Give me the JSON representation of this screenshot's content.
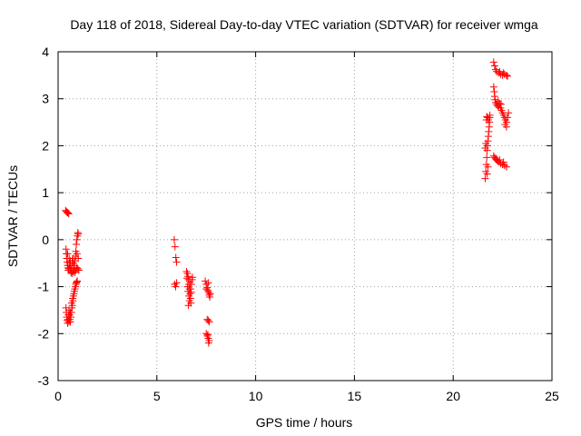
{
  "chart_data": {
    "type": "scatter",
    "title": "Day 118 of 2018, Sidereal Day-to-day VTEC variation (SDTVAR) for receiver wmga",
    "xlabel": "GPS time / hours",
    "ylabel": "SDTVAR / TECUs",
    "xlim": [
      0,
      25
    ],
    "ylim": [
      -3,
      4
    ],
    "x_ticks": [
      0,
      5,
      10,
      15,
      20,
      25
    ],
    "y_ticks": [
      -3,
      -2,
      -1,
      0,
      1,
      2,
      3,
      4
    ],
    "grid": true,
    "marker": "+",
    "color": "#ff0000",
    "series": [
      {
        "name": "wmga",
        "points": [
          [
            0.38,
            0.62
          ],
          [
            0.42,
            0.6
          ],
          [
            0.46,
            0.58
          ],
          [
            0.5,
            0.57
          ],
          [
            0.54,
            0.55
          ],
          [
            0.4,
            -0.2
          ],
          [
            0.42,
            -0.3
          ],
          [
            0.44,
            -0.4
          ],
          [
            0.46,
            -0.48
          ],
          [
            0.48,
            -0.55
          ],
          [
            0.5,
            -0.6
          ],
          [
            0.52,
            -0.65
          ],
          [
            0.55,
            -0.62
          ],
          [
            0.58,
            -0.55
          ],
          [
            0.6,
            -0.5
          ],
          [
            0.62,
            -0.6
          ],
          [
            0.65,
            -0.7
          ],
          [
            0.68,
            -0.62
          ],
          [
            0.7,
            -0.55
          ],
          [
            0.72,
            -0.45
          ],
          [
            0.75,
            -0.4
          ],
          [
            0.78,
            -0.5
          ],
          [
            0.8,
            -0.6
          ],
          [
            0.82,
            -0.55
          ],
          [
            0.85,
            -0.45
          ],
          [
            0.88,
            -0.35
          ],
          [
            0.9,
            -0.25
          ],
          [
            0.92,
            -0.1
          ],
          [
            0.95,
            0.0
          ],
          [
            0.98,
            0.08
          ],
          [
            1.0,
            0.15
          ],
          [
            1.02,
            0.12
          ],
          [
            0.9,
            -0.65
          ],
          [
            0.95,
            -0.6
          ],
          [
            1.0,
            -0.62
          ],
          [
            1.05,
            -0.65
          ],
          [
            0.48,
            -0.3
          ],
          [
            0.56,
            -0.4
          ],
          [
            0.62,
            -0.45
          ],
          [
            0.7,
            -0.72
          ],
          [
            0.76,
            -0.68
          ],
          [
            0.84,
            -0.7
          ],
          [
            0.96,
            -0.3
          ],
          [
            1.02,
            -0.4
          ],
          [
            0.4,
            -1.45
          ],
          [
            0.42,
            -1.55
          ],
          [
            0.44,
            -1.65
          ],
          [
            0.46,
            -1.72
          ],
          [
            0.48,
            -1.78
          ],
          [
            0.5,
            -1.7
          ],
          [
            0.52,
            -1.6
          ],
          [
            0.55,
            -1.5
          ],
          [
            0.58,
            -1.6
          ],
          [
            0.6,
            -1.7
          ],
          [
            0.62,
            -1.75
          ],
          [
            0.65,
            -1.65
          ],
          [
            0.68,
            -1.55
          ],
          [
            0.7,
            -1.45
          ],
          [
            0.72,
            -1.4
          ],
          [
            0.75,
            -1.3
          ],
          [
            0.78,
            -1.2
          ],
          [
            0.8,
            -1.15
          ],
          [
            0.82,
            -1.1
          ],
          [
            0.85,
            -1.05
          ],
          [
            0.88,
            -1.0
          ],
          [
            0.9,
            -0.95
          ],
          [
            0.92,
            -0.92
          ],
          [
            0.95,
            -0.9
          ],
          [
            0.97,
            -0.88
          ],
          [
            0.55,
            -1.75
          ],
          [
            0.62,
            -1.55
          ],
          [
            0.68,
            -1.35
          ],
          [
            0.74,
            -1.25
          ],
          [
            5.88,
            0.0
          ],
          [
            5.92,
            -0.15
          ],
          [
            5.96,
            -0.38
          ],
          [
            6.0,
            -0.48
          ],
          [
            5.9,
            -0.95
          ],
          [
            5.95,
            -1.0
          ],
          [
            6.0,
            -0.92
          ],
          [
            6.5,
            -0.68
          ],
          [
            6.55,
            -0.72
          ],
          [
            6.58,
            -0.78
          ],
          [
            6.6,
            -0.85
          ],
          [
            6.62,
            -0.95
          ],
          [
            6.65,
            -1.05
          ],
          [
            6.68,
            -1.15
          ],
          [
            6.7,
            -1.25
          ],
          [
            6.72,
            -1.35
          ],
          [
            6.55,
            -1.0
          ],
          [
            6.58,
            -1.1
          ],
          [
            6.62,
            -1.2
          ],
          [
            6.65,
            -1.3
          ],
          [
            6.7,
            -1.05
          ],
          [
            6.75,
            -0.95
          ],
          [
            6.78,
            -0.85
          ],
          [
            6.8,
            -0.8
          ],
          [
            6.6,
            -1.4
          ],
          [
            6.68,
            -0.9
          ],
          [
            6.52,
            -0.82
          ],
          [
            6.74,
            -1.12
          ],
          [
            7.45,
            -0.88
          ],
          [
            7.5,
            -0.95
          ],
          [
            7.55,
            -1.02
          ],
          [
            7.58,
            -1.08
          ],
          [
            7.62,
            -1.12
          ],
          [
            7.65,
            -1.18
          ],
          [
            7.68,
            -1.22
          ],
          [
            7.7,
            -1.15
          ],
          [
            7.5,
            -1.05
          ],
          [
            7.6,
            -0.92
          ],
          [
            7.55,
            -1.7
          ],
          [
            7.6,
            -1.72
          ],
          [
            7.65,
            -1.75
          ],
          [
            7.5,
            -2.0
          ],
          [
            7.55,
            -2.05
          ],
          [
            7.6,
            -2.1
          ],
          [
            7.62,
            -2.2
          ],
          [
            7.65,
            -2.15
          ],
          [
            7.58,
            -2.02
          ],
          [
            21.62,
            1.3
          ],
          [
            21.65,
            1.45
          ],
          [
            21.68,
            1.6
          ],
          [
            21.7,
            1.75
          ],
          [
            21.72,
            1.9
          ],
          [
            21.74,
            2.0
          ],
          [
            21.76,
            2.1
          ],
          [
            21.78,
            2.2
          ],
          [
            21.8,
            2.3
          ],
          [
            21.82,
            2.4
          ],
          [
            21.84,
            2.5
          ],
          [
            21.85,
            2.6
          ],
          [
            21.86,
            2.65
          ],
          [
            21.68,
            2.55
          ],
          [
            21.7,
            2.62
          ],
          [
            21.74,
            2.6
          ],
          [
            21.78,
            2.55
          ],
          [
            21.62,
            1.95
          ],
          [
            21.66,
            2.05
          ],
          [
            21.72,
            1.4
          ],
          [
            21.76,
            1.55
          ],
          [
            22.05,
            3.78
          ],
          [
            22.1,
            3.7
          ],
          [
            22.15,
            3.62
          ],
          [
            22.2,
            3.58
          ],
          [
            22.3,
            3.55
          ],
          [
            22.4,
            3.52
          ],
          [
            22.5,
            3.5
          ],
          [
            22.6,
            3.52
          ],
          [
            22.7,
            3.5
          ],
          [
            22.75,
            3.48
          ],
          [
            22.35,
            3.58
          ],
          [
            22.55,
            3.55
          ],
          [
            22.05,
            3.25
          ],
          [
            22.08,
            3.15
          ],
          [
            22.1,
            3.05
          ],
          [
            22.12,
            2.98
          ],
          [
            22.15,
            2.92
          ],
          [
            22.2,
            2.88
          ],
          [
            22.25,
            2.85
          ],
          [
            22.3,
            2.82
          ],
          [
            22.35,
            2.9
          ],
          [
            22.4,
            2.8
          ],
          [
            22.45,
            2.75
          ],
          [
            22.5,
            2.7
          ],
          [
            22.55,
            2.65
          ],
          [
            22.6,
            2.6
          ],
          [
            22.65,
            2.55
          ],
          [
            22.7,
            2.5
          ],
          [
            22.75,
            2.6
          ],
          [
            22.8,
            2.7
          ],
          [
            22.62,
            2.45
          ],
          [
            22.7,
            2.4
          ],
          [
            22.28,
            2.95
          ],
          [
            22.42,
            2.88
          ],
          [
            22.05,
            1.78
          ],
          [
            22.1,
            1.75
          ],
          [
            22.15,
            1.72
          ],
          [
            22.2,
            1.7
          ],
          [
            22.25,
            1.68
          ],
          [
            22.3,
            1.65
          ],
          [
            22.4,
            1.62
          ],
          [
            22.5,
            1.6
          ],
          [
            22.6,
            1.58
          ],
          [
            22.7,
            1.55
          ],
          [
            22.35,
            1.7
          ],
          [
            22.55,
            1.65
          ]
        ]
      }
    ]
  }
}
